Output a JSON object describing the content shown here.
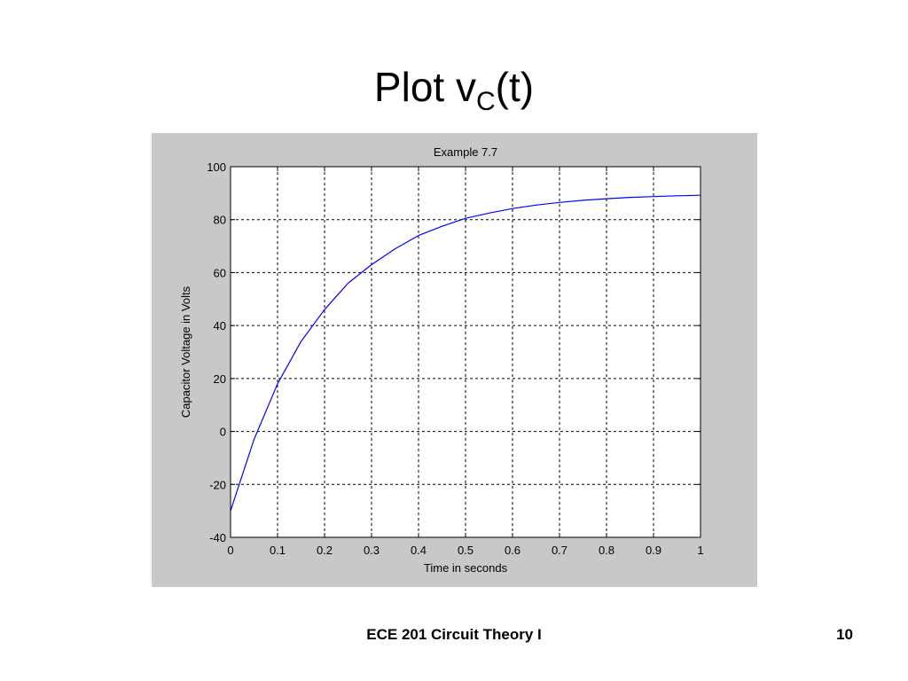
{
  "slide": {
    "title_main": "Plot v",
    "title_sub": "C",
    "title_tail": "(t)",
    "footer_course": "ECE 201 Circuit Theory I",
    "page_number": "10"
  },
  "colors": {
    "figure_background": "#c8c8c8",
    "axes_background": "#ffffff",
    "line": "#0000ff",
    "grid": "#000000"
  },
  "chart_data": {
    "type": "line",
    "title": "Example 7.7",
    "xlabel": "Time in seconds",
    "ylabel": "Capacitor Voltage in Volts",
    "xlim": [
      0,
      1
    ],
    "ylim": [
      -40,
      100
    ],
    "xticks": [
      0,
      0.1,
      0.2,
      0.3,
      0.4,
      0.5,
      0.6,
      0.7,
      0.8,
      0.9,
      1
    ],
    "xtick_labels": [
      "0",
      "0.1",
      "0.2",
      "0.3",
      "0.4",
      "0.5",
      "0.6",
      "0.7",
      "0.8",
      "0.9",
      "1"
    ],
    "yticks": [
      -40,
      -20,
      0,
      20,
      40,
      60,
      80,
      100
    ],
    "ytick_labels": [
      "-40",
      "-20",
      "0",
      "20",
      "40",
      "60",
      "80",
      "100"
    ],
    "grid": true,
    "grid_style": "dashed",
    "series": [
      {
        "x": [
          0,
          0.05,
          0.1,
          0.15,
          0.2,
          0.25,
          0.3,
          0.35,
          0.4,
          0.45,
          0.5,
          0.55,
          0.6,
          0.65,
          0.7,
          0.75,
          0.8,
          0.85,
          0.9,
          0.95,
          1
        ],
        "y": [
          -30,
          -3,
          18,
          34,
          46,
          56,
          63,
          69,
          74,
          77.5,
          80.5,
          82.5,
          84.2,
          85.5,
          86.5,
          87.3,
          87.9,
          88.4,
          88.7,
          89,
          89.2
        ]
      }
    ]
  }
}
